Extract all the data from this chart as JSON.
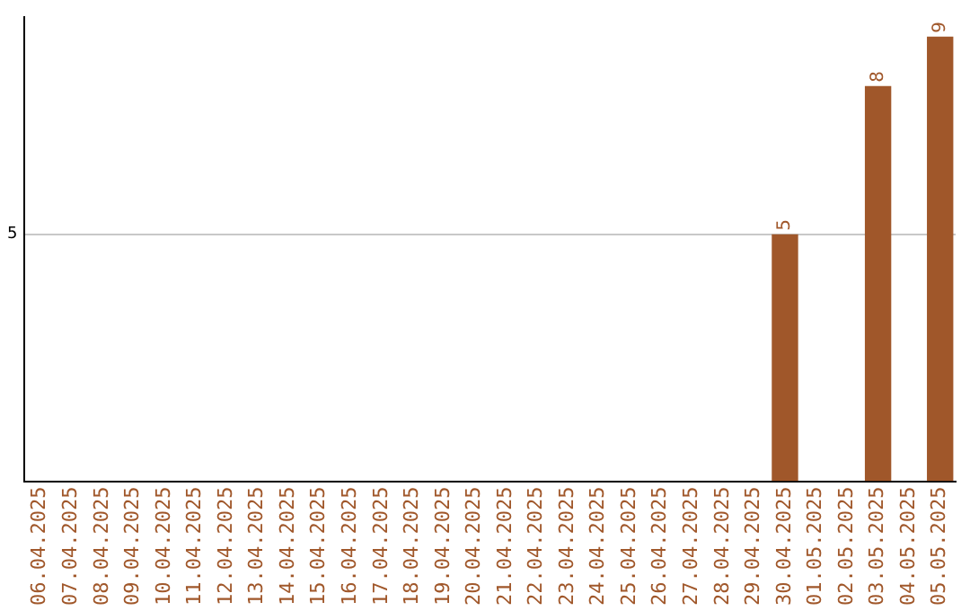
{
  "chart_data": {
    "type": "bar",
    "categories": [
      "06.04.2025",
      "07.04.2025",
      "08.04.2025",
      "09.04.2025",
      "10.04.2025",
      "11.04.2025",
      "12.04.2025",
      "13.04.2025",
      "14.04.2025",
      "15.04.2025",
      "16.04.2025",
      "17.04.2025",
      "18.04.2025",
      "19.04.2025",
      "20.04.2025",
      "21.04.2025",
      "22.04.2025",
      "23.04.2025",
      "24.04.2025",
      "25.04.2025",
      "26.04.2025",
      "27.04.2025",
      "28.04.2025",
      "29.04.2025",
      "30.04.2025",
      "01.05.2025",
      "02.05.2025",
      "03.05.2025",
      "04.05.2025",
      "05.05.2025"
    ],
    "values": [
      null,
      null,
      null,
      null,
      null,
      null,
      null,
      null,
      null,
      null,
      null,
      null,
      null,
      null,
      null,
      null,
      null,
      null,
      null,
      null,
      null,
      null,
      null,
      null,
      5,
      null,
      null,
      8,
      null,
      9
    ],
    "color": "#a0572a",
    "ylim": [
      0,
      9.4
    ],
    "yticks": [
      5
    ],
    "grid": "y",
    "legend": false,
    "data_labels": true
  }
}
